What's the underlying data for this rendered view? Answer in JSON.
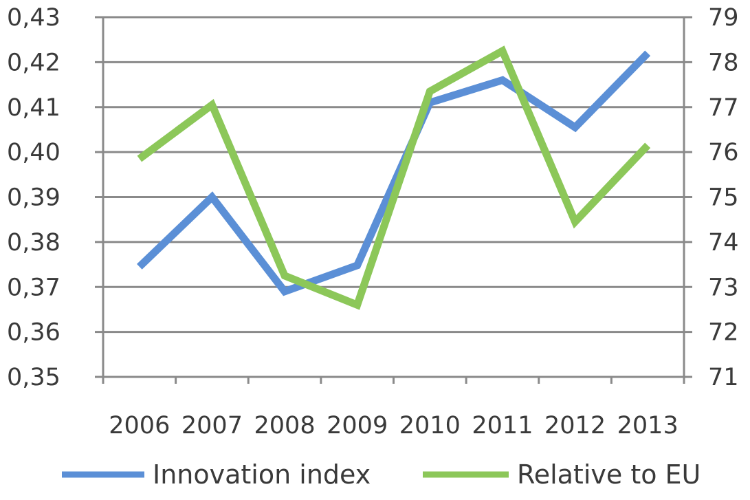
{
  "chart_data": {
    "type": "line",
    "title": "",
    "xlabel": "",
    "ylabel": "",
    "y2label": "",
    "categories": [
      "2006",
      "2007",
      "2008",
      "2009",
      "2010",
      "2011",
      "2012",
      "2013"
    ],
    "ylim": [
      0.35,
      0.43
    ],
    "y2lim": [
      71,
      79
    ],
    "y_ticks": [
      "0,35",
      "0,36",
      "0,37",
      "0,38",
      "0,39",
      "0,40",
      "0,41",
      "0,42",
      "0,43"
    ],
    "y2_ticks": [
      "71",
      "72",
      "73",
      "74",
      "75",
      "76",
      "77",
      "78",
      "79"
    ],
    "grid": true,
    "legend_position": "bottom",
    "series": [
      {
        "name": "Innovation index",
        "axis": "left",
        "color": "#5b8fd6",
        "values": [
          0.3745,
          0.39,
          0.369,
          0.3748,
          0.411,
          0.416,
          0.4055,
          0.422
        ]
      },
      {
        "name": "Relative to EU",
        "axis": "right",
        "color": "#8cc759",
        "values": [
          75.85,
          77.05,
          73.25,
          72.6,
          77.35,
          78.25,
          74.45,
          76.15
        ]
      }
    ]
  }
}
